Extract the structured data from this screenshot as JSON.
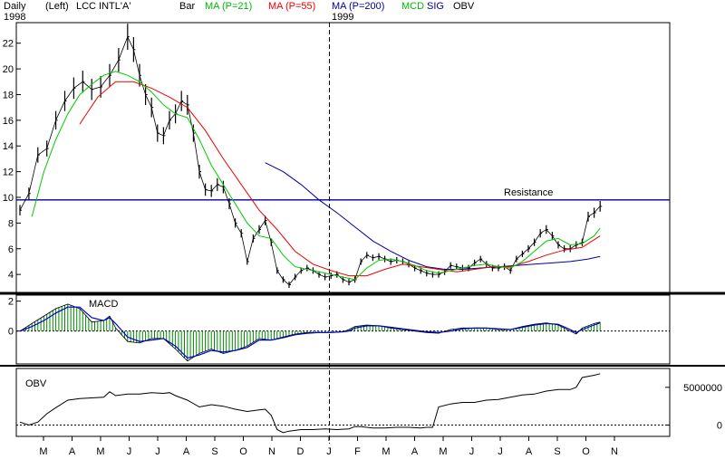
{
  "header": {
    "period": "Daily",
    "axis_side": "(Left)",
    "symbol": "LCC INTL'A'",
    "bar_label": "Bar",
    "ma21": "MA (P=21)",
    "ma55": "MA (P=55)",
    "ma200": "MA (P=200)",
    "mcd": "MCD",
    "sig": "SIG",
    "obv": "OBV",
    "year_start": "1998",
    "year_split": "1999"
  },
  "colors": {
    "ma21": "#00cc00",
    "ma55": "#ee0000",
    "ma200": "#000099",
    "macd_hist": "#008800",
    "signal": "#0000cc",
    "resistance": "#000099",
    "header_green": "#00bb00",
    "header_red": "#ee0000",
    "header_blue": "#000099"
  },
  "chart_data": [
    {
      "type": "line",
      "title": "LCC INTL'A'",
      "ylim": [
        2.6,
        23.6
      ],
      "y_ticks": [
        "4",
        "6",
        "8",
        "10",
        "12",
        "14",
        "16",
        "18",
        "20",
        "22"
      ],
      "x_ticks": [
        "M",
        "A",
        "M",
        "J",
        "J",
        "A",
        "S",
        "O",
        "N",
        "D",
        "J",
        "F",
        "M",
        "A",
        "M",
        "J",
        "J",
        "A",
        "S",
        "O",
        "N"
      ],
      "year_labels": [
        "1998",
        "1999"
      ],
      "annotation": "Resistance",
      "resistance_level": 9.8,
      "price_close": [
        [
          0,
          9
        ],
        [
          3,
          10.3
        ],
        [
          6,
          13.3
        ],
        [
          9,
          13.8
        ],
        [
          12,
          16
        ],
        [
          15,
          17.5
        ],
        [
          18,
          18.5
        ],
        [
          21,
          19
        ],
        [
          24,
          18.4
        ],
        [
          27,
          18.6
        ],
        [
          30,
          19.5
        ],
        [
          33,
          20.7
        ],
        [
          36,
          22.5
        ],
        [
          38,
          21.5
        ],
        [
          40,
          19.5
        ],
        [
          42,
          18
        ],
        [
          44,
          17
        ],
        [
          46,
          15
        ],
        [
          48,
          14.8
        ],
        [
          50,
          16
        ],
        [
          52,
          16.5
        ],
        [
          54,
          17.5
        ],
        [
          56,
          17.2
        ],
        [
          58,
          15
        ],
        [
          60,
          12
        ],
        [
          62,
          10.6
        ],
        [
          64,
          10.5
        ],
        [
          66,
          11
        ],
        [
          68,
          10.8
        ],
        [
          70,
          9.5
        ],
        [
          72,
          8
        ],
        [
          74,
          7.2
        ],
        [
          76,
          5
        ],
        [
          78,
          6.8
        ],
        [
          80,
          7.5
        ],
        [
          82,
          8.2
        ],
        [
          84,
          6.5
        ],
        [
          86,
          4.3
        ],
        [
          88,
          3.6
        ],
        [
          90,
          3.2
        ],
        [
          92,
          3.8
        ],
        [
          94,
          4.3
        ],
        [
          96,
          4.5
        ],
        [
          98,
          4.3
        ],
        [
          100,
          4
        ],
        [
          102,
          3.8
        ],
        [
          104,
          3.9
        ],
        [
          106,
          4
        ],
        [
          108,
          3.6
        ],
        [
          110,
          3.4
        ],
        [
          112,
          3.6
        ],
        [
          114,
          5
        ],
        [
          116,
          5.5
        ],
        [
          118,
          5.3
        ],
        [
          120,
          5.4
        ],
        [
          122,
          5.2
        ],
        [
          124,
          5
        ],
        [
          126,
          5.1
        ],
        [
          128,
          5
        ],
        [
          130,
          4.8
        ],
        [
          132,
          4.5
        ],
        [
          134,
          4.3
        ],
        [
          136,
          4.1
        ],
        [
          138,
          4
        ],
        [
          140,
          4
        ],
        [
          142,
          4.2
        ],
        [
          144,
          4.7
        ],
        [
          146,
          4.6
        ],
        [
          148,
          4.5
        ],
        [
          150,
          4.5
        ],
        [
          152,
          4.9
        ],
        [
          154,
          5.2
        ],
        [
          156,
          4.8
        ],
        [
          158,
          4.5
        ],
        [
          160,
          4.5
        ],
        [
          162,
          4.6
        ],
        [
          164,
          4.3
        ],
        [
          166,
          5.2
        ],
        [
          168,
          5.6
        ],
        [
          170,
          6
        ],
        [
          172,
          6.5
        ],
        [
          174,
          7.2
        ],
        [
          176,
          7.5
        ],
        [
          178,
          7
        ],
        [
          180,
          6.3
        ],
        [
          182,
          6
        ],
        [
          184,
          6
        ],
        [
          186,
          6.3
        ],
        [
          188,
          6.5
        ],
        [
          190,
          8.5
        ],
        [
          192,
          8.8
        ],
        [
          194,
          9.3
        ]
      ],
      "ma21": [
        [
          4,
          8.5
        ],
        [
          8,
          12
        ],
        [
          12,
          14.5
        ],
        [
          16,
          16.5
        ],
        [
          20,
          18
        ],
        [
          24,
          18.8
        ],
        [
          28,
          19.5
        ],
        [
          32,
          19.8
        ],
        [
          36,
          19.5
        ],
        [
          40,
          19
        ],
        [
          44,
          18.2
        ],
        [
          48,
          17.2
        ],
        [
          52,
          16.5
        ],
        [
          56,
          16.2
        ],
        [
          60,
          14.5
        ],
        [
          64,
          12.5
        ],
        [
          68,
          11
        ],
        [
          72,
          9.5
        ],
        [
          76,
          8
        ],
        [
          80,
          7
        ],
        [
          84,
          6.8
        ],
        [
          88,
          5.5
        ],
        [
          92,
          4.6
        ],
        [
          96,
          4.4
        ],
        [
          100,
          4.2
        ],
        [
          104,
          4
        ],
        [
          108,
          3.8
        ],
        [
          112,
          3.6
        ],
        [
          116,
          4.5
        ],
        [
          120,
          5.1
        ],
        [
          124,
          5.2
        ],
        [
          128,
          5
        ],
        [
          132,
          4.7
        ],
        [
          136,
          4.3
        ],
        [
          140,
          4.1
        ],
        [
          144,
          4.3
        ],
        [
          148,
          4.5
        ],
        [
          152,
          4.7
        ],
        [
          156,
          4.8
        ],
        [
          160,
          4.6
        ],
        [
          164,
          4.5
        ],
        [
          168,
          5
        ],
        [
          172,
          5.8
        ],
        [
          176,
          6.6
        ],
        [
          180,
          6.8
        ],
        [
          184,
          6.3
        ],
        [
          188,
          6.4
        ],
        [
          192,
          7
        ],
        [
          194,
          7.6
        ]
      ],
      "ma55": [
        [
          20,
          15.7
        ],
        [
          26,
          17.8
        ],
        [
          32,
          19
        ],
        [
          38,
          19
        ],
        [
          44,
          18.5
        ],
        [
          50,
          17.8
        ],
        [
          56,
          17
        ],
        [
          62,
          15.2
        ],
        [
          68,
          13
        ],
        [
          74,
          11
        ],
        [
          80,
          9
        ],
        [
          86,
          7.5
        ],
        [
          92,
          5.8
        ],
        [
          98,
          4.8
        ],
        [
          104,
          4.3
        ],
        [
          110,
          3.9
        ],
        [
          116,
          3.9
        ],
        [
          122,
          4.4
        ],
        [
          128,
          4.8
        ],
        [
          134,
          4.6
        ],
        [
          140,
          4.4
        ],
        [
          146,
          4.2
        ],
        [
          152,
          4.4
        ],
        [
          158,
          4.6
        ],
        [
          164,
          4.6
        ],
        [
          170,
          5
        ],
        [
          176,
          5.5
        ],
        [
          182,
          5.9
        ],
        [
          188,
          6.1
        ],
        [
          194,
          7
        ]
      ],
      "ma200": [
        [
          82,
          12.7
        ],
        [
          88,
          12
        ],
        [
          94,
          11
        ],
        [
          100,
          9.8
        ],
        [
          106,
          8.8
        ],
        [
          112,
          7.7
        ],
        [
          118,
          6.6
        ],
        [
          124,
          5.8
        ],
        [
          130,
          5.1
        ],
        [
          136,
          4.6
        ],
        [
          142,
          4.4
        ],
        [
          148,
          4.4
        ],
        [
          154,
          4.5
        ],
        [
          160,
          4.6
        ],
        [
          166,
          4.7
        ],
        [
          172,
          4.8
        ],
        [
          178,
          4.9
        ],
        [
          184,
          5
        ],
        [
          190,
          5.2
        ],
        [
          194,
          5.4
        ]
      ]
    },
    {
      "type": "area",
      "title": "MACD",
      "ylim": [
        -2.2,
        2.4
      ],
      "y_ticks": [
        "0",
        "2"
      ],
      "macd": [
        [
          0,
          0
        ],
        [
          4,
          0.5
        ],
        [
          8,
          1
        ],
        [
          12,
          1.5
        ],
        [
          16,
          1.8
        ],
        [
          20,
          1.5
        ],
        [
          24,
          0.6
        ],
        [
          28,
          0.7
        ],
        [
          30,
          1
        ],
        [
          32,
          0.2
        ],
        [
          36,
          -0.7
        ],
        [
          40,
          -0.8
        ],
        [
          44,
          -0.5
        ],
        [
          48,
          -0.5
        ],
        [
          52,
          -1.2
        ],
        [
          56,
          -2
        ],
        [
          60,
          -1.5
        ],
        [
          64,
          -1.2
        ],
        [
          68,
          -1.5
        ],
        [
          72,
          -1.3
        ],
        [
          76,
          -1
        ],
        [
          80,
          -0.5
        ],
        [
          84,
          -0.6
        ],
        [
          88,
          -0.4
        ],
        [
          92,
          -0.2
        ],
        [
          96,
          -0.1
        ],
        [
          100,
          -0.1
        ],
        [
          104,
          -0.1
        ],
        [
          108,
          -0.05
        ],
        [
          110,
          0.1
        ],
        [
          112,
          0.3
        ],
        [
          116,
          0.4
        ],
        [
          120,
          0.35
        ],
        [
          124,
          0.2
        ],
        [
          128,
          0.1
        ],
        [
          132,
          0
        ],
        [
          136,
          -0.1
        ],
        [
          140,
          -0.15
        ],
        [
          144,
          0.1
        ],
        [
          148,
          0.2
        ],
        [
          152,
          0.2
        ],
        [
          156,
          0.2
        ],
        [
          160,
          0.1
        ],
        [
          164,
          0.1
        ],
        [
          168,
          0.3
        ],
        [
          172,
          0.45
        ],
        [
          176,
          0.55
        ],
        [
          180,
          0.4
        ],
        [
          184,
          0
        ],
        [
          186,
          -0.2
        ],
        [
          188,
          0.2
        ],
        [
          192,
          0.5
        ],
        [
          194,
          0.6
        ]
      ],
      "signal": [
        [
          0,
          0
        ],
        [
          4,
          0.3
        ],
        [
          8,
          0.7
        ],
        [
          12,
          1.2
        ],
        [
          16,
          1.6
        ],
        [
          20,
          1.6
        ],
        [
          24,
          0.9
        ],
        [
          28,
          0.7
        ],
        [
          30,
          0.9
        ],
        [
          32,
          0.5
        ],
        [
          36,
          -0.4
        ],
        [
          40,
          -0.7
        ],
        [
          44,
          -0.6
        ],
        [
          48,
          -0.5
        ],
        [
          52,
          -1
        ],
        [
          56,
          -1.8
        ],
        [
          60,
          -1.6
        ],
        [
          64,
          -1.3
        ],
        [
          68,
          -1.4
        ],
        [
          72,
          -1.3
        ],
        [
          76,
          -1.1
        ],
        [
          80,
          -0.6
        ],
        [
          84,
          -0.6
        ],
        [
          88,
          -0.45
        ],
        [
          92,
          -0.25
        ],
        [
          96,
          -0.15
        ],
        [
          100,
          -0.1
        ],
        [
          104,
          -0.1
        ],
        [
          108,
          -0.05
        ],
        [
          110,
          0
        ],
        [
          112,
          0.2
        ],
        [
          116,
          0.35
        ],
        [
          120,
          0.35
        ],
        [
          124,
          0.25
        ],
        [
          128,
          0.15
        ],
        [
          132,
          0.05
        ],
        [
          136,
          -0.05
        ],
        [
          140,
          -0.1
        ],
        [
          144,
          0
        ],
        [
          148,
          0.15
        ],
        [
          152,
          0.2
        ],
        [
          156,
          0.2
        ],
        [
          160,
          0.15
        ],
        [
          164,
          0.1
        ],
        [
          168,
          0.25
        ],
        [
          172,
          0.4
        ],
        [
          176,
          0.5
        ],
        [
          180,
          0.45
        ],
        [
          184,
          0.1
        ],
        [
          186,
          -0.1
        ],
        [
          188,
          0.1
        ],
        [
          192,
          0.4
        ],
        [
          194,
          0.55
        ]
      ]
    },
    {
      "type": "line",
      "title": "OBV",
      "ylim": [
        -1500000,
        7500000
      ],
      "y_ticks": [
        "0",
        "5000000"
      ],
      "obv": [
        [
          0,
          400000
        ],
        [
          3,
          0
        ],
        [
          6,
          400000
        ],
        [
          9,
          1500000
        ],
        [
          12,
          2300000
        ],
        [
          16,
          3300000
        ],
        [
          20,
          3500000
        ],
        [
          24,
          3600000
        ],
        [
          28,
          3700000
        ],
        [
          30,
          4400000
        ],
        [
          32,
          3900000
        ],
        [
          36,
          4100000
        ],
        [
          40,
          4100000
        ],
        [
          44,
          4300000
        ],
        [
          48,
          4200000
        ],
        [
          50,
          4300000
        ],
        [
          52,
          3900000
        ],
        [
          56,
          3300000
        ],
        [
          60,
          2400000
        ],
        [
          64,
          2700000
        ],
        [
          68,
          2500000
        ],
        [
          72,
          2100000
        ],
        [
          76,
          1800000
        ],
        [
          80,
          2000000
        ],
        [
          82,
          2100000
        ],
        [
          84,
          1300000
        ],
        [
          86,
          -600000
        ],
        [
          88,
          -1000000
        ],
        [
          90,
          -800000
        ],
        [
          94,
          -600000
        ],
        [
          98,
          -600000
        ],
        [
          102,
          -500000
        ],
        [
          106,
          -600000
        ],
        [
          110,
          -500000
        ],
        [
          112,
          -200000
        ],
        [
          114,
          -200000
        ],
        [
          118,
          -400000
        ],
        [
          122,
          -400000
        ],
        [
          126,
          -300000
        ],
        [
          130,
          -300000
        ],
        [
          134,
          -400000
        ],
        [
          136,
          -300000
        ],
        [
          138,
          -300000
        ],
        [
          140,
          2400000
        ],
        [
          144,
          2800000
        ],
        [
          148,
          3000000
        ],
        [
          152,
          3000000
        ],
        [
          156,
          3300000
        ],
        [
          160,
          3400000
        ],
        [
          164,
          3700000
        ],
        [
          168,
          4000000
        ],
        [
          172,
          4100000
        ],
        [
          176,
          4500000
        ],
        [
          180,
          4700000
        ],
        [
          184,
          4700000
        ],
        [
          186,
          5000000
        ],
        [
          188,
          6300000
        ],
        [
          192,
          6600000
        ],
        [
          194,
          6800000
        ]
      ]
    }
  ]
}
